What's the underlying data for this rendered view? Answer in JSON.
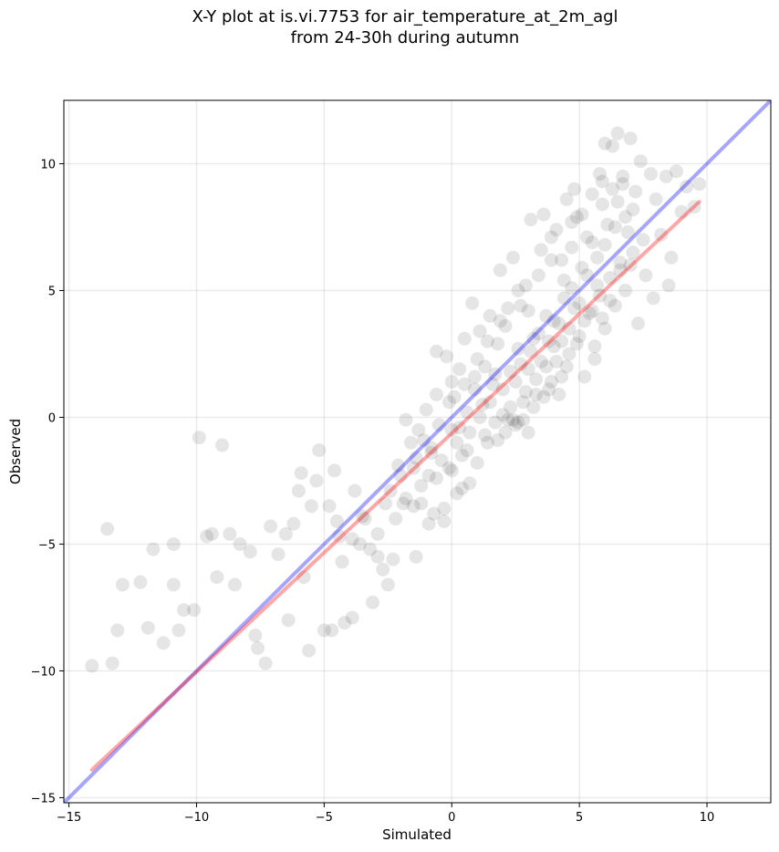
{
  "chart_data": {
    "type": "scatter",
    "title": "X-Y plot at is.vi.7753 for air_temperature_at_2m_agl",
    "subtitle": "from 24-30h during autumn",
    "xlabel": "Simulated",
    "ylabel": "Observed",
    "xlim": [
      -15.2,
      12.5
    ],
    "ylim": [
      -15.2,
      12.5
    ],
    "xticks": [
      -15,
      -10,
      -5,
      0,
      5,
      10
    ],
    "yticks": [
      -15,
      -10,
      -5,
      0,
      5,
      10
    ],
    "xtick_labels": [
      "−15",
      "−10",
      "−5",
      "0",
      "5",
      "10"
    ],
    "ytick_labels": [
      "−15",
      "−10",
      "−5",
      "0",
      "5",
      "10"
    ],
    "grid": true,
    "point_color": "#000000",
    "point_opacity": 0.1,
    "points": [
      [
        -14.1,
        -9.8
      ],
      [
        -13.5,
        -4.4
      ],
      [
        -13.3,
        -9.7
      ],
      [
        -13.1,
        -8.4
      ],
      [
        -12.9,
        -6.6
      ],
      [
        -12.2,
        -6.5
      ],
      [
        -11.9,
        -8.3
      ],
      [
        -11.7,
        -5.2
      ],
      [
        -11.3,
        -8.9
      ],
      [
        -10.9,
        -6.6
      ],
      [
        -10.9,
        -5.0
      ],
      [
        -10.7,
        -8.4
      ],
      [
        -10.5,
        -7.6
      ],
      [
        -10.1,
        -7.6
      ],
      [
        -9.9,
        -0.8
      ],
      [
        -9.6,
        -4.7
      ],
      [
        -9.4,
        -4.6
      ],
      [
        -9.2,
        -6.3
      ],
      [
        -9.0,
        -1.1
      ],
      [
        -8.7,
        -4.6
      ],
      [
        -8.5,
        -6.6
      ],
      [
        -8.3,
        -5.0
      ],
      [
        -7.9,
        -5.3
      ],
      [
        -7.7,
        -8.6
      ],
      [
        -7.6,
        -9.1
      ],
      [
        -7.3,
        -9.7
      ],
      [
        -7.1,
        -4.3
      ],
      [
        -6.8,
        -5.4
      ],
      [
        -6.5,
        -4.6
      ],
      [
        -6.4,
        -8.0
      ],
      [
        -6.2,
        -4.2
      ],
      [
        -6.0,
        -2.9
      ],
      [
        -5.9,
        -2.2
      ],
      [
        -5.8,
        -6.3
      ],
      [
        -5.6,
        -9.2
      ],
      [
        -5.5,
        -3.5
      ],
      [
        -5.3,
        -2.5
      ],
      [
        -5.2,
        -1.3
      ],
      [
        -5.0,
        -8.4
      ],
      [
        -4.8,
        -3.5
      ],
      [
        -4.7,
        -8.4
      ],
      [
        -4.6,
        -2.1
      ],
      [
        -4.4,
        -4.7
      ],
      [
        -4.2,
        -8.1
      ],
      [
        -3.9,
        -7.9
      ],
      [
        -3.8,
        -2.9
      ],
      [
        -3.6,
        -5.0
      ],
      [
        -3.4,
        -4.0
      ],
      [
        -3.1,
        -7.3
      ],
      [
        -2.9,
        -5.5
      ],
      [
        -2.7,
        -6.0
      ],
      [
        -2.5,
        -6.6
      ],
      [
        -2.3,
        -5.6
      ],
      [
        -2.2,
        -4.0
      ],
      [
        -2.1,
        -1.9
      ],
      [
        -1.9,
        -3.4
      ],
      [
        -1.8,
        -0.1
      ],
      [
        -1.6,
        -1.0
      ],
      [
        -1.5,
        -2.0
      ],
      [
        -1.4,
        -5.5
      ],
      [
        -1.3,
        -0.5
      ],
      [
        -1.2,
        -3.4
      ],
      [
        -1.0,
        0.3
      ],
      [
        -0.9,
        -2.3
      ],
      [
        -0.8,
        -1.2
      ],
      [
        -0.7,
        -3.8
      ],
      [
        -0.6,
        2.6
      ],
      [
        -0.5,
        -0.3
      ],
      [
        -0.4,
        -1.7
      ],
      [
        -0.3,
        -4.1
      ],
      [
        -0.2,
        2.4
      ],
      [
        -0.1,
        -2.0
      ],
      [
        0.0,
        -0.5
      ],
      [
        0.1,
        0.8
      ],
      [
        0.2,
        -3.0
      ],
      [
        0.3,
        1.9
      ],
      [
        0.4,
        -1.5
      ],
      [
        0.5,
        3.1
      ],
      [
        0.6,
        0.2
      ],
      [
        0.7,
        -2.6
      ],
      [
        0.8,
        4.5
      ],
      [
        0.9,
        1.1
      ],
      [
        1.0,
        -1.8
      ],
      [
        1.1,
        3.4
      ],
      [
        1.2,
        0.5
      ],
      [
        1.3,
        2.0
      ],
      [
        1.4,
        -1.0
      ],
      [
        1.5,
        4.0
      ],
      [
        1.6,
        1.3
      ],
      [
        1.7,
        -0.2
      ],
      [
        1.8,
        2.9
      ],
      [
        1.9,
        5.8
      ],
      [
        2.0,
        0.1
      ],
      [
        2.1,
        3.6
      ],
      [
        2.2,
        -0.1
      ],
      [
        2.3,
        1.8
      ],
      [
        2.4,
        6.3
      ],
      [
        2.5,
        -0.3
      ],
      [
        2.6,
        2.7
      ],
      [
        2.7,
        4.4
      ],
      [
        2.8,
        0.6
      ],
      [
        2.9,
        5.2
      ],
      [
        3.0,
        1.9
      ],
      [
        3.1,
        7.8
      ],
      [
        3.2,
        3.1
      ],
      [
        3.3,
        0.9
      ],
      [
        3.4,
        5.6
      ],
      [
        3.5,
        2.2
      ],
      [
        3.6,
        8.0
      ],
      [
        3.7,
        4.0
      ],
      [
        3.8,
        1.1
      ],
      [
        3.9,
        6.2
      ],
      [
        4.0,
        2.8
      ],
      [
        4.1,
        7.4
      ],
      [
        4.2,
        3.7
      ],
      [
        4.3,
        1.6
      ],
      [
        4.4,
        5.4
      ],
      [
        4.5,
        8.6
      ],
      [
        4.6,
        2.5
      ],
      [
        4.7,
        6.7
      ],
      [
        4.8,
        4.3
      ],
      [
        4.9,
        7.9
      ],
      [
        5.0,
        3.2
      ],
      [
        5.1,
        5.9
      ],
      [
        5.2,
        1.6
      ],
      [
        5.3,
        7.1
      ],
      [
        5.4,
        4.1
      ],
      [
        5.5,
        8.8
      ],
      [
        5.6,
        2.8
      ],
      [
        5.7,
        6.3
      ],
      [
        5.8,
        4.8
      ],
      [
        5.9,
        9.3
      ],
      [
        6.0,
        3.5
      ],
      [
        6.1,
        7.6
      ],
      [
        6.2,
        5.5
      ],
      [
        6.3,
        10.7
      ],
      [
        6.4,
        4.4
      ],
      [
        6.5,
        8.5
      ],
      [
        6.6,
        6.1
      ],
      [
        6.7,
        9.5
      ],
      [
        6.8,
        5.0
      ],
      [
        6.9,
        7.3
      ],
      [
        7.0,
        11.0
      ],
      [
        7.1,
        6.5
      ],
      [
        7.2,
        8.9
      ],
      [
        7.3,
        3.7
      ],
      [
        7.4,
        10.1
      ],
      [
        7.5,
        7.0
      ],
      [
        7.6,
        5.6
      ],
      [
        7.8,
        9.6
      ],
      [
        8.0,
        8.6
      ],
      [
        8.2,
        7.2
      ],
      [
        8.4,
        9.5
      ],
      [
        8.6,
        6.3
      ],
      [
        8.8,
        9.7
      ],
      [
        9.0,
        8.1
      ],
      [
        9.2,
        9.1
      ],
      [
        9.5,
        8.3
      ],
      [
        9.7,
        9.2
      ],
      [
        7.9,
        4.7
      ],
      [
        8.5,
        5.2
      ],
      [
        6.5,
        11.2
      ],
      [
        6.0,
        10.8
      ],
      [
        5.8,
        9.6
      ],
      [
        4.8,
        9.0
      ],
      [
        -0.6,
        0.9
      ],
      [
        0.0,
        1.4
      ],
      [
        0.3,
        -0.4
      ],
      [
        0.6,
        -1.3
      ],
      [
        0.9,
        1.6
      ],
      [
        1.1,
        0.0
      ],
      [
        1.3,
        -0.7
      ],
      [
        1.5,
        0.6
      ],
      [
        1.7,
        1.7
      ],
      [
        1.8,
        -0.9
      ],
      [
        2.0,
        1.1
      ],
      [
        2.1,
        -0.6
      ],
      [
        2.3,
        0.4
      ],
      [
        2.4,
        -0.1
      ],
      [
        2.5,
        1.4
      ],
      [
        2.6,
        -0.2
      ],
      [
        2.7,
        2.1
      ],
      [
        2.8,
        -0.1
      ],
      [
        2.9,
        1.0
      ],
      [
        3.0,
        -0.6
      ],
      [
        3.1,
        2.6
      ],
      [
        3.2,
        0.4
      ],
      [
        3.3,
        1.5
      ],
      [
        3.4,
        3.3
      ],
      [
        3.6,
        0.8
      ],
      [
        3.7,
        2.0
      ],
      [
        3.8,
        3.0
      ],
      [
        3.9,
        1.4
      ],
      [
        4.0,
        3.8
      ],
      [
        4.1,
        2.2
      ],
      [
        4.2,
        0.9
      ],
      [
        4.3,
        3.0
      ],
      [
        4.4,
        4.7
      ],
      [
        4.5,
        2.0
      ],
      [
        4.6,
        3.5
      ],
      [
        4.7,
        5.1
      ],
      [
        4.9,
        2.9
      ],
      [
        5.0,
        4.5
      ],
      [
        5.2,
        3.8
      ],
      [
        5.3,
        5.6
      ],
      [
        5.5,
        4.2
      ],
      [
        5.6,
        2.3
      ],
      [
        5.7,
        5.2
      ],
      [
        5.9,
        3.9
      ],
      [
        6.0,
        6.8
      ],
      [
        6.2,
        4.6
      ],
      [
        6.4,
        7.5
      ],
      [
        6.6,
        5.8
      ],
      [
        6.8,
        7.9
      ],
      [
        7.0,
        6.0
      ],
      [
        -1.8,
        -3.2
      ],
      [
        -1.5,
        -3.5
      ],
      [
        -1.2,
        -2.7
      ],
      [
        -0.9,
        -4.2
      ],
      [
        -0.6,
        -2.4
      ],
      [
        -0.3,
        -3.6
      ],
      [
        0.0,
        -2.1
      ],
      [
        0.2,
        -1.0
      ],
      [
        0.4,
        -2.8
      ],
      [
        0.7,
        -0.6
      ],
      [
        -0.8,
        -1.4
      ],
      [
        -1.1,
        -0.9
      ],
      [
        -1.4,
        -1.6
      ],
      [
        -2.0,
        -2.3
      ],
      [
        -2.4,
        -2.9
      ],
      [
        -2.6,
        -3.4
      ],
      [
        -2.9,
        -4.6
      ],
      [
        -3.2,
        -5.2
      ],
      [
        -3.5,
        -3.9
      ],
      [
        -3.9,
        -4.8
      ],
      [
        -4.3,
        -5.7
      ],
      [
        -4.5,
        -4.1
      ],
      [
        -0.1,
        0.6
      ],
      [
        0.5,
        1.3
      ],
      [
        1.0,
        2.3
      ],
      [
        1.4,
        3.0
      ],
      [
        1.9,
        3.8
      ],
      [
        2.2,
        4.3
      ],
      [
        2.6,
        5.0
      ],
      [
        3.0,
        4.2
      ],
      [
        3.5,
        6.6
      ],
      [
        3.9,
        7.1
      ],
      [
        4.3,
        6.2
      ],
      [
        4.7,
        7.7
      ],
      [
        5.1,
        8.0
      ],
      [
        5.5,
        6.9
      ],
      [
        5.9,
        8.4
      ],
      [
        6.3,
        9.0
      ],
      [
        6.7,
        9.2
      ],
      [
        7.1,
        8.2
      ]
    ],
    "lines": [
      {
        "color": "#0000ff",
        "opacity": 0.35,
        "x": [
          -15.2,
          12.5
        ],
        "y": [
          -15.2,
          12.5
        ]
      },
      {
        "color": "#ff0000",
        "opacity": 0.35,
        "x": [
          -14.1,
          9.7
        ],
        "y": [
          -13.9,
          8.5
        ]
      }
    ]
  }
}
